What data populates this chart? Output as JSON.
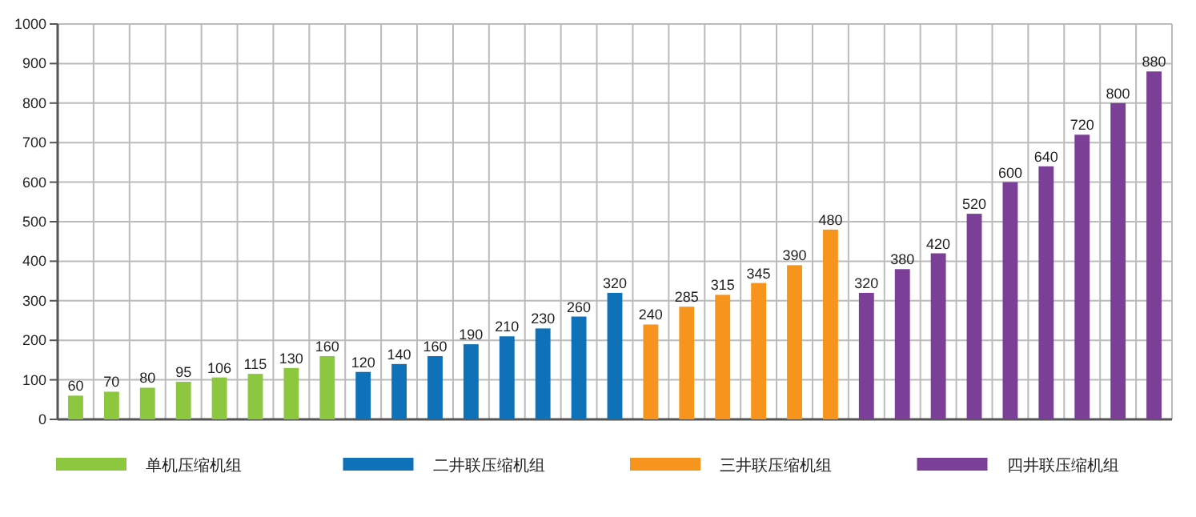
{
  "chart_data": {
    "type": "bar",
    "categories": [
      null,
      null,
      null,
      null,
      null,
      null,
      null,
      null,
      null,
      null,
      null,
      null,
      null,
      null,
      null,
      null,
      null,
      null,
      null,
      null,
      null,
      null,
      null,
      null,
      null,
      null,
      null,
      null,
      null,
      null,
      null
    ],
    "series": [
      {
        "name": "单机压缩机组",
        "color": "#8dc63f",
        "values": [
          60,
          70,
          80,
          95,
          106,
          115,
          130,
          160,
          null,
          null,
          null,
          null,
          null,
          null,
          null,
          null,
          null,
          null,
          null,
          null,
          null,
          null,
          null,
          null,
          null,
          null,
          null,
          null,
          null,
          null,
          null
        ]
      },
      {
        "name": "二井联压缩机组",
        "color": "#0f72b9",
        "values": [
          null,
          null,
          null,
          null,
          null,
          null,
          null,
          null,
          120,
          140,
          160,
          190,
          210,
          230,
          260,
          320,
          null,
          null,
          null,
          null,
          null,
          null,
          null,
          null,
          null,
          null,
          null,
          null,
          null,
          null,
          null
        ]
      },
      {
        "name": "三井联压缩机组",
        "color": "#f7941d",
        "values": [
          null,
          null,
          null,
          null,
          null,
          null,
          null,
          null,
          null,
          null,
          null,
          null,
          null,
          null,
          null,
          null,
          240,
          285,
          315,
          345,
          390,
          480,
          null,
          null,
          null,
          null,
          null,
          null,
          null,
          null,
          null
        ]
      },
      {
        "name": "四井联压缩机组",
        "color": "#7b3f98",
        "values": [
          null,
          null,
          null,
          null,
          null,
          null,
          null,
          null,
          null,
          null,
          null,
          null,
          null,
          null,
          null,
          null,
          null,
          null,
          null,
          null,
          null,
          null,
          320,
          380,
          420,
          520,
          600,
          640,
          720,
          800,
          880
        ]
      }
    ],
    "ylim": [
      0,
      1000
    ],
    "yticks": [
      0,
      100,
      200,
      300,
      400,
      500,
      600,
      700,
      800,
      900,
      1000
    ],
    "grid": true,
    "legend": "bottom",
    "data_labels": true
  }
}
